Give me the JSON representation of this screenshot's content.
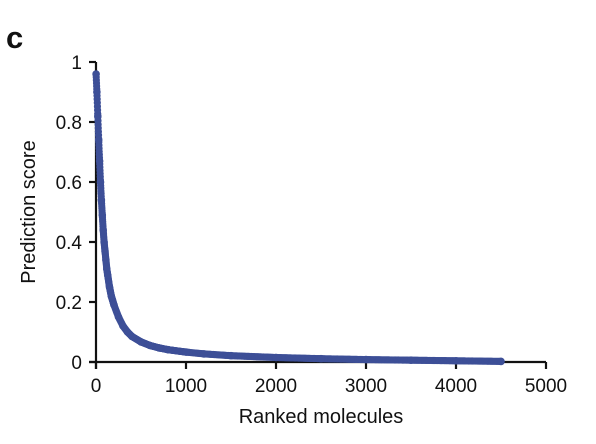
{
  "panel_label": "c",
  "chart_data": {
    "type": "scatter",
    "title": "",
    "xlabel": "Ranked molecules",
    "ylabel": "Prediction score",
    "xlim": [
      0,
      5000
    ],
    "ylim": [
      0,
      1
    ],
    "xticks": [
      0,
      1000,
      2000,
      3000,
      4000,
      5000
    ],
    "yticks": [
      0,
      0.2,
      0.4,
      0.6,
      0.8,
      1
    ],
    "ytick_labels": [
      "0",
      "0.2",
      "0.4",
      "0.6",
      "0.8",
      "1"
    ],
    "grid": false,
    "legend": "none",
    "color": "#3d4f97",
    "series": [
      {
        "x": [
          1,
          10,
          20,
          30,
          40,
          50,
          60,
          70,
          80,
          90,
          100,
          110,
          120,
          130,
          150,
          170,
          200,
          250,
          300,
          350,
          400,
          500,
          600,
          700,
          800,
          1000,
          1200,
          1500,
          2000,
          2500,
          3000,
          3500,
          4000,
          4500
        ],
        "y": [
          0.96,
          0.9,
          0.82,
          0.74,
          0.67,
          0.6,
          0.54,
          0.49,
          0.44,
          0.4,
          0.37,
          0.34,
          0.31,
          0.29,
          0.25,
          0.22,
          0.19,
          0.15,
          0.12,
          0.1,
          0.085,
          0.067,
          0.055,
          0.047,
          0.041,
          0.033,
          0.027,
          0.021,
          0.015,
          0.011,
          0.008,
          0.006,
          0.004,
          0.002
        ]
      }
    ]
  }
}
